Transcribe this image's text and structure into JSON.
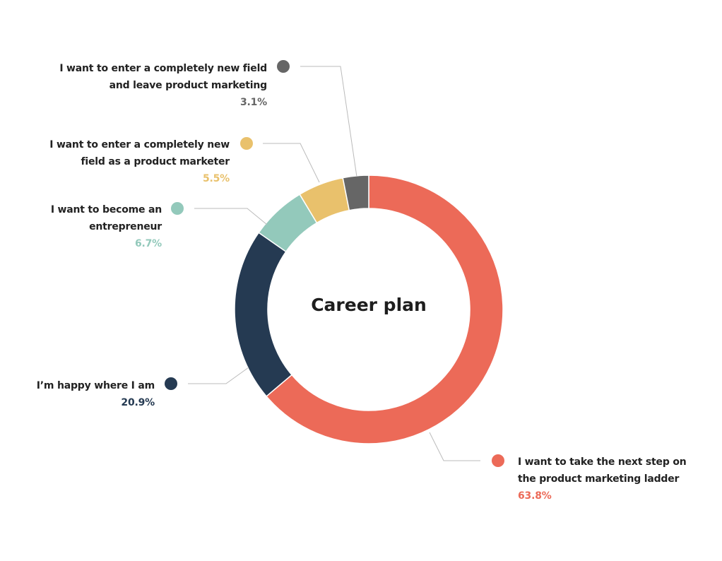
{
  "chart_data": {
    "type": "pie",
    "donut": true,
    "title": "Career plan",
    "categories": [
      "I want to take the next step on the product marketing ladder",
      "I’m happy where I am",
      "I want to become an entrepreneur",
      "I want to enter a completely new field as a product marketer",
      "I want to enter a completely new field and leave product marketing"
    ],
    "values": [
      63.8,
      20.9,
      6.7,
      5.5,
      3.1
    ],
    "value_labels": [
      "63.8%",
      "20.9%",
      "6.7%",
      "5.5%",
      "3.1%"
    ],
    "colors": [
      "#ec6a58",
      "#253a52",
      "#93c9bb",
      "#e9c16c",
      "#666666"
    ]
  }
}
